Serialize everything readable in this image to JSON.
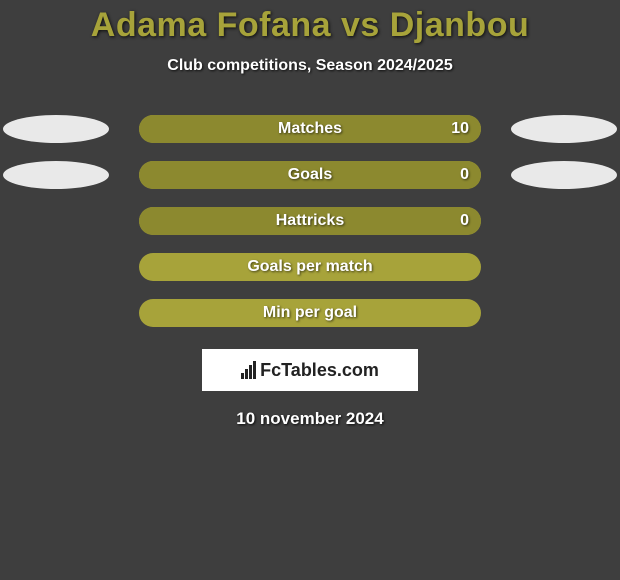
{
  "background_color": "#3e3e3e",
  "title": {
    "text": "Adama Fofana vs Djanbou",
    "color": "#a7a33a",
    "fontsize": 34
  },
  "subtitle": {
    "text": "Club competitions, Season 2024/2025",
    "color": "#ffffff",
    "fontsize": 16
  },
  "ellipse_color": "#e9e9e9",
  "bar_base_color": "#a7a33a",
  "bar_fill_color": "#8c892f",
  "bar_text_color": "#ffffff",
  "bar_value_color": "#ffffff",
  "stats": [
    {
      "label": "Matches",
      "value": "10",
      "fill_ratio": 1.0,
      "show_ellipses": true,
      "show_value": true
    },
    {
      "label": "Goals",
      "value": "0",
      "fill_ratio": 1.0,
      "show_ellipses": true,
      "show_value": true
    },
    {
      "label": "Hattricks",
      "value": "0",
      "fill_ratio": 1.0,
      "show_ellipses": false,
      "show_value": true
    },
    {
      "label": "Goals per match",
      "value": "",
      "fill_ratio": 0.0,
      "show_ellipses": false,
      "show_value": false
    },
    {
      "label": "Min per goal",
      "value": "",
      "fill_ratio": 0.0,
      "show_ellipses": false,
      "show_value": false
    }
  ],
  "logo": {
    "box_bg": "#ffffff",
    "text": "FcTables.com"
  },
  "date": {
    "text": "10 november 2024",
    "color": "#ffffff"
  }
}
